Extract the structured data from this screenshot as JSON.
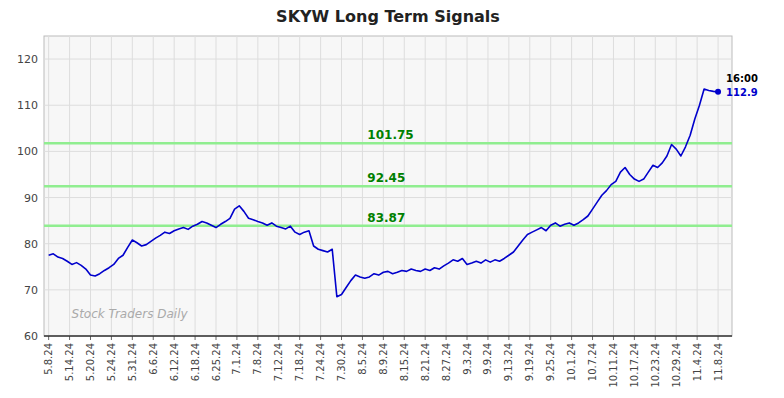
{
  "chart_data": {
    "type": "line",
    "title": "SKYW Long Term Signals",
    "x": [
      0,
      1,
      2,
      3,
      4,
      5,
      6,
      7,
      8,
      9,
      10,
      11,
      12,
      13,
      14,
      15,
      16,
      17,
      18,
      19,
      20,
      21,
      22,
      23,
      24,
      25,
      26,
      27,
      28,
      29,
      30,
      31,
      32,
      33,
      34,
      35,
      36,
      37,
      38,
      39,
      40,
      41,
      42,
      43,
      44,
      45,
      46,
      47,
      48,
      49,
      50,
      51,
      52,
      53,
      54,
      55,
      56,
      57,
      58,
      59,
      60,
      61,
      62,
      63,
      64,
      65,
      66,
      67,
      68,
      69,
      70,
      71,
      72,
      73,
      74,
      75,
      76,
      77,
      78,
      79,
      80,
      81,
      82,
      83,
      84,
      85,
      86,
      87,
      88,
      89,
      90,
      91,
      92,
      93,
      94,
      95,
      96,
      97,
      98,
      99,
      100,
      101,
      102,
      103,
      104,
      105,
      106,
      107,
      108,
      109,
      110,
      111,
      112,
      113,
      114,
      115,
      116,
      117,
      118,
      119,
      120,
      121,
      122,
      123,
      124,
      125,
      126,
      127,
      128,
      129,
      130,
      131,
      132,
      133,
      134,
      135,
      136,
      137,
      138,
      139,
      140,
      141,
      142,
      143,
      144
    ],
    "series": [
      {
        "name": "SKYW",
        "color": "#0000cc",
        "values": [
          77.5,
          77.8,
          77.1,
          76.8,
          76.2,
          75.5,
          75.9,
          75.3,
          74.5,
          73.2,
          73.0,
          73.5,
          74.2,
          74.8,
          75.5,
          76.8,
          77.5,
          79.2,
          80.8,
          80.2,
          79.5,
          79.8,
          80.5,
          81.2,
          81.8,
          82.5,
          82.2,
          82.8,
          83.2,
          83.5,
          83.1,
          83.8,
          84.2,
          84.8,
          84.5,
          84.0,
          83.5,
          84.2,
          84.8,
          85.5,
          87.5,
          88.2,
          87.0,
          85.5,
          85.2,
          84.8,
          84.5,
          84.0,
          84.5,
          83.8,
          83.5,
          83.2,
          83.8,
          82.5,
          82.0,
          82.5,
          82.8,
          79.5,
          78.8,
          78.5,
          78.2,
          78.8,
          68.5,
          69.0,
          70.5,
          72.0,
          73.2,
          72.8,
          72.5,
          72.8,
          73.5,
          73.2,
          73.8,
          74.0,
          73.5,
          73.8,
          74.2,
          74.0,
          74.5,
          74.2,
          74.0,
          74.5,
          74.2,
          74.8,
          74.5,
          75.2,
          75.8,
          76.5,
          76.2,
          76.8,
          75.5,
          75.8,
          76.2,
          75.8,
          76.5,
          76.0,
          76.5,
          76.2,
          76.8,
          77.5,
          78.2,
          79.5,
          80.8,
          82.0,
          82.5,
          83.0,
          83.5,
          82.8,
          84.0,
          84.5,
          83.8,
          84.2,
          84.5,
          84.0,
          84.5,
          85.2,
          86.0,
          87.5,
          89.0,
          90.5,
          91.5,
          92.8,
          93.5,
          95.5,
          96.5,
          95.0,
          94.0,
          93.5,
          94.0,
          95.5,
          97.0,
          96.5,
          97.5,
          99.0,
          101.5,
          100.5,
          99.0,
          101.0,
          103.5,
          107.0,
          110.0,
          113.5,
          113.2,
          113.0,
          112.9
        ]
      }
    ],
    "xlim": [
      -1,
      147
    ],
    "xticks": [
      {
        "value": 0,
        "label": "5.8.24"
      },
      {
        "value": 4.5,
        "label": "5.14.24"
      },
      {
        "value": 9,
        "label": "5.20.24"
      },
      {
        "value": 13.5,
        "label": "5.24.24"
      },
      {
        "value": 18,
        "label": "5.31.24"
      },
      {
        "value": 22.5,
        "label": "6.6.24"
      },
      {
        "value": 27,
        "label": "6.12.24"
      },
      {
        "value": 31.5,
        "label": "6.18.24"
      },
      {
        "value": 36,
        "label": "6.25.24"
      },
      {
        "value": 40.5,
        "label": "7.1.24"
      },
      {
        "value": 45,
        "label": "7.8.24"
      },
      {
        "value": 49.5,
        "label": "7.12.24"
      },
      {
        "value": 54,
        "label": "7.18.24"
      },
      {
        "value": 58.5,
        "label": "7.24.24"
      },
      {
        "value": 63,
        "label": "7.30.24"
      },
      {
        "value": 67.5,
        "label": "8.5.24"
      },
      {
        "value": 72,
        "label": "8.9.24"
      },
      {
        "value": 76.5,
        "label": "8.15.24"
      },
      {
        "value": 81,
        "label": "8.21.24"
      },
      {
        "value": 85.5,
        "label": "8.27.24"
      },
      {
        "value": 90,
        "label": "9.3.24"
      },
      {
        "value": 94.5,
        "label": "9.9.24"
      },
      {
        "value": 99,
        "label": "9.13.24"
      },
      {
        "value": 103.5,
        "label": "9.19.24"
      },
      {
        "value": 108,
        "label": "9.25.24"
      },
      {
        "value": 112.5,
        "label": "10.1.24"
      },
      {
        "value": 117,
        "label": "10.7.24"
      },
      {
        "value": 121.5,
        "label": "10.11.24"
      },
      {
        "value": 126,
        "label": "10.17.24"
      },
      {
        "value": 130.5,
        "label": "10.23.24"
      },
      {
        "value": 135,
        "label": "10.29.24"
      },
      {
        "value": 139.5,
        "label": "11.4.24"
      },
      {
        "value": 144,
        "label": "11.8.24"
      }
    ],
    "ylim": [
      60,
      125
    ],
    "yticks": [
      60,
      70,
      80,
      90,
      100,
      110,
      120
    ],
    "grid": true,
    "horizontal_lines": [
      {
        "value": 83.87,
        "label": "83.87",
        "color": "#90ee90"
      },
      {
        "value": 92.45,
        "label": "92.45",
        "color": "#90ee90"
      },
      {
        "value": 101.75,
        "label": "101.75",
        "color": "#90ee90"
      }
    ],
    "annotations": [
      {
        "text": "Stock Traders Daily"
      },
      {
        "text": "16:00"
      },
      {
        "text": "112.9",
        "value": 112.9
      }
    ]
  }
}
